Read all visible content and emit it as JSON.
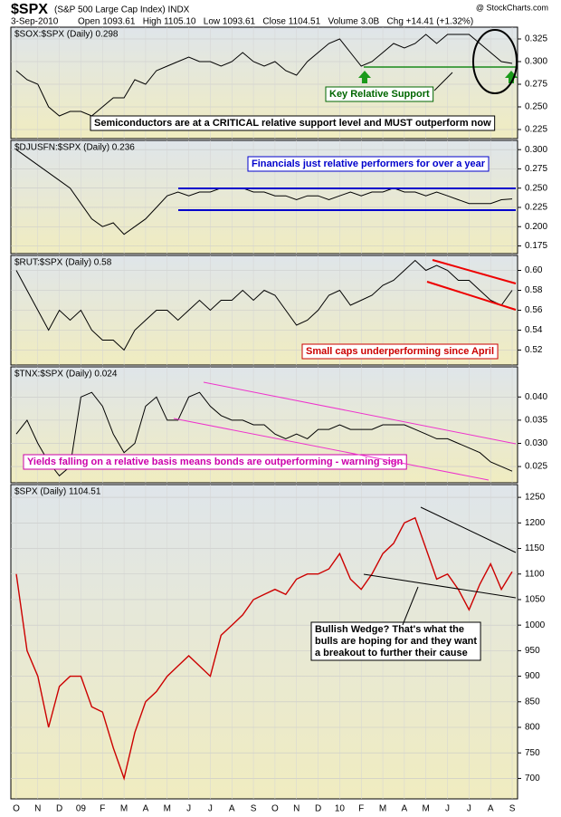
{
  "header": {
    "symbol": "$SPX",
    "name": "(S&P 500 Large Cap Index) INDX",
    "source": "@ StockCharts.com",
    "date": "3-Sep-2010",
    "quote": "Open 1093.61   High 1105.10   Low 1093.61   Close 1104.51   Volume 3.0B   Chg +14.41 (+1.32%)"
  },
  "chart_data": [
    {
      "type": "line",
      "title": "$SOX:$SPX (Daily) 0.298",
      "color": "#000000",
      "values": [
        0.29,
        0.28,
        0.275,
        0.25,
        0.24,
        0.245,
        0.245,
        0.24,
        0.25,
        0.26,
        0.26,
        0.28,
        0.275,
        0.29,
        0.295,
        0.3,
        0.305,
        0.3,
        0.3,
        0.295,
        0.3,
        0.31,
        0.3,
        0.295,
        0.3,
        0.29,
        0.285,
        0.3,
        0.31,
        0.32,
        0.325,
        0.31,
        0.295,
        0.3,
        0.31,
        0.32,
        0.315,
        0.32,
        0.33,
        0.32,
        0.33,
        0.33,
        0.33,
        0.32,
        0.31,
        0.3,
        0.298
      ],
      "ylim": [
        0.215,
        0.338
      ],
      "yticks": [
        0.225,
        {
          "value": 0.25,
          "label": "0.250"
        },
        0.275,
        {
          "value": 0.3,
          "label": "0.300"
        },
        0.325
      ],
      "annotations": [
        "Key Relative Support",
        "Semiconductors are at a CRITICAL relative support level and MUST outperform now"
      ]
    },
    {
      "type": "line",
      "title": "$DJUSFN:$SPX (Daily) 0.236",
      "color": "#000000",
      "values": [
        0.3,
        0.29,
        0.28,
        0.27,
        0.26,
        0.25,
        0.23,
        0.21,
        0.2,
        0.205,
        0.19,
        0.2,
        0.21,
        0.225,
        0.24,
        0.245,
        0.24,
        0.245,
        0.245,
        0.25,
        0.25,
        0.25,
        0.245,
        0.245,
        0.24,
        0.24,
        0.235,
        0.24,
        0.24,
        0.235,
        0.24,
        0.245,
        0.24,
        0.245,
        0.245,
        0.25,
        0.245,
        0.245,
        0.24,
        0.245,
        0.24,
        0.235,
        0.23,
        0.23,
        0.23,
        0.235,
        0.236
      ],
      "ylim": [
        0.165,
        0.312
      ],
      "yticks": [
        0.175,
        {
          "value": 0.2,
          "label": "0.200"
        },
        0.225,
        {
          "value": 0.25,
          "label": "0.250"
        },
        0.275,
        {
          "value": 0.3,
          "label": "0.300"
        }
      ],
      "annotations": [
        "Financials just relative performers for over a year"
      ]
    },
    {
      "type": "line",
      "title": "$RUT:$SPX (Daily) 0.58",
      "color": "#000000",
      "values": [
        0.6,
        0.58,
        0.56,
        0.54,
        0.56,
        0.55,
        0.56,
        0.54,
        0.53,
        0.53,
        0.52,
        0.54,
        0.55,
        0.56,
        0.56,
        0.55,
        0.56,
        0.57,
        0.56,
        0.57,
        0.57,
        0.58,
        0.57,
        0.58,
        0.575,
        0.56,
        0.545,
        0.55,
        0.56,
        0.575,
        0.58,
        0.565,
        0.57,
        0.575,
        0.585,
        0.59,
        0.6,
        0.61,
        0.6,
        0.605,
        0.6,
        0.59,
        0.59,
        0.58,
        0.57,
        0.565,
        0.58
      ],
      "ylim": [
        0.505,
        0.615
      ],
      "yticks": [
        0.52,
        0.54,
        0.56,
        0.58,
        {
          "value": 0.6,
          "label": "0.60"
        }
      ],
      "annotations": [
        "Small caps underperforming since April"
      ]
    },
    {
      "type": "line",
      "title": "$TNX:$SPX (Daily) 0.024",
      "color": "#000000",
      "values": [
        0.032,
        0.035,
        0.03,
        0.026,
        0.023,
        0.025,
        0.04,
        0.041,
        0.038,
        0.032,
        0.028,
        0.03,
        0.038,
        0.04,
        0.035,
        0.035,
        0.04,
        0.041,
        0.038,
        0.036,
        0.035,
        0.035,
        0.034,
        0.034,
        0.032,
        0.031,
        0.032,
        0.031,
        0.033,
        0.033,
        0.034,
        0.033,
        0.033,
        0.033,
        0.034,
        0.034,
        0.034,
        0.033,
        0.032,
        0.031,
        0.031,
        0.03,
        0.029,
        0.028,
        0.026,
        0.025,
        0.024
      ],
      "ylim": [
        0.0215,
        0.0465
      ],
      "yticks": [
        0.025,
        {
          "value": 0.03,
          "label": "0.030"
        },
        0.035,
        {
          "value": 0.04,
          "label": "0.040"
        }
      ],
      "annotations": [
        "Yields falling on a relative basis means bonds are outperforming - warning sign"
      ]
    },
    {
      "type": "line",
      "title": "$SPX (Daily) 1104.51",
      "color": "#cc0000",
      "categories": [
        "O",
        null,
        "N",
        null,
        "D",
        null,
        "09",
        null,
        "F",
        null,
        "M",
        null,
        "A",
        null,
        "M",
        null,
        "J",
        null,
        "J",
        null,
        "A",
        null,
        "S",
        null,
        "O",
        null,
        "N",
        null,
        "D",
        null,
        "10",
        null,
        "F",
        null,
        "M",
        null,
        "A",
        null,
        "M",
        null,
        "J",
        null,
        "J",
        null,
        "A",
        null,
        "S"
      ],
      "values": [
        1100,
        950,
        900,
        800,
        880,
        900,
        900,
        840,
        830,
        760,
        700,
        790,
        850,
        870,
        900,
        920,
        940,
        920,
        900,
        980,
        1000,
        1020,
        1050,
        1060,
        1070,
        1060,
        1090,
        1100,
        1100,
        1110,
        1140,
        1090,
        1070,
        1100,
        1140,
        1160,
        1200,
        1210,
        1150,
        1090,
        1100,
        1070,
        1030,
        1080,
        1120,
        1070,
        1104.51
      ],
      "ylim": [
        660,
        1275
      ],
      "yticks": [
        700,
        750,
        800,
        850,
        900,
        950,
        1000,
        1050,
        1100,
        1150,
        1200,
        1250
      ],
      "annotations": [
        [
          "Bullish Wedge?  That's what the",
          "bulls are hoping for and they want",
          "a breakout to further their cause"
        ]
      ]
    }
  ]
}
